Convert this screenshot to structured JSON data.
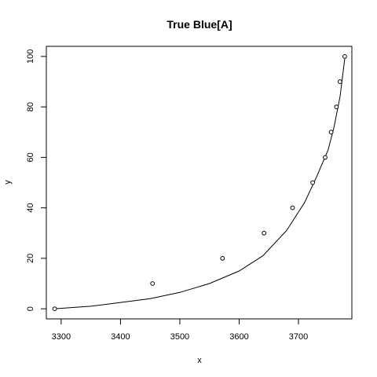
{
  "chart_data": {
    "type": "scatter",
    "title": "True Blue[A]",
    "xlabel": "x",
    "ylabel": "y",
    "xlim": [
      3275,
      3790
    ],
    "ylim": [
      -4,
      104
    ],
    "x_ticks": [
      3300,
      3400,
      3500,
      3600,
      3700
    ],
    "y_ticks": [
      0,
      20,
      40,
      60,
      80,
      100
    ],
    "grid": false,
    "legend": "none",
    "series": [
      {
        "kind": "points",
        "x": [
          3289,
          3454,
          3572,
          3642,
          3690,
          3724,
          3745,
          3755,
          3764,
          3770,
          3778
        ],
        "y": [
          0,
          10,
          20,
          30,
          40,
          50,
          60,
          70,
          80,
          90,
          100
        ]
      },
      {
        "kind": "fitted-line",
        "x": [
          3289,
          3350,
          3400,
          3450,
          3500,
          3550,
          3600,
          3640,
          3680,
          3710,
          3730,
          3750,
          3760,
          3770,
          3778
        ],
        "y": [
          0,
          1,
          2.5,
          4,
          6.5,
          10,
          15,
          21,
          31,
          42,
          52,
          63,
          72,
          84,
          99
        ]
      }
    ]
  }
}
